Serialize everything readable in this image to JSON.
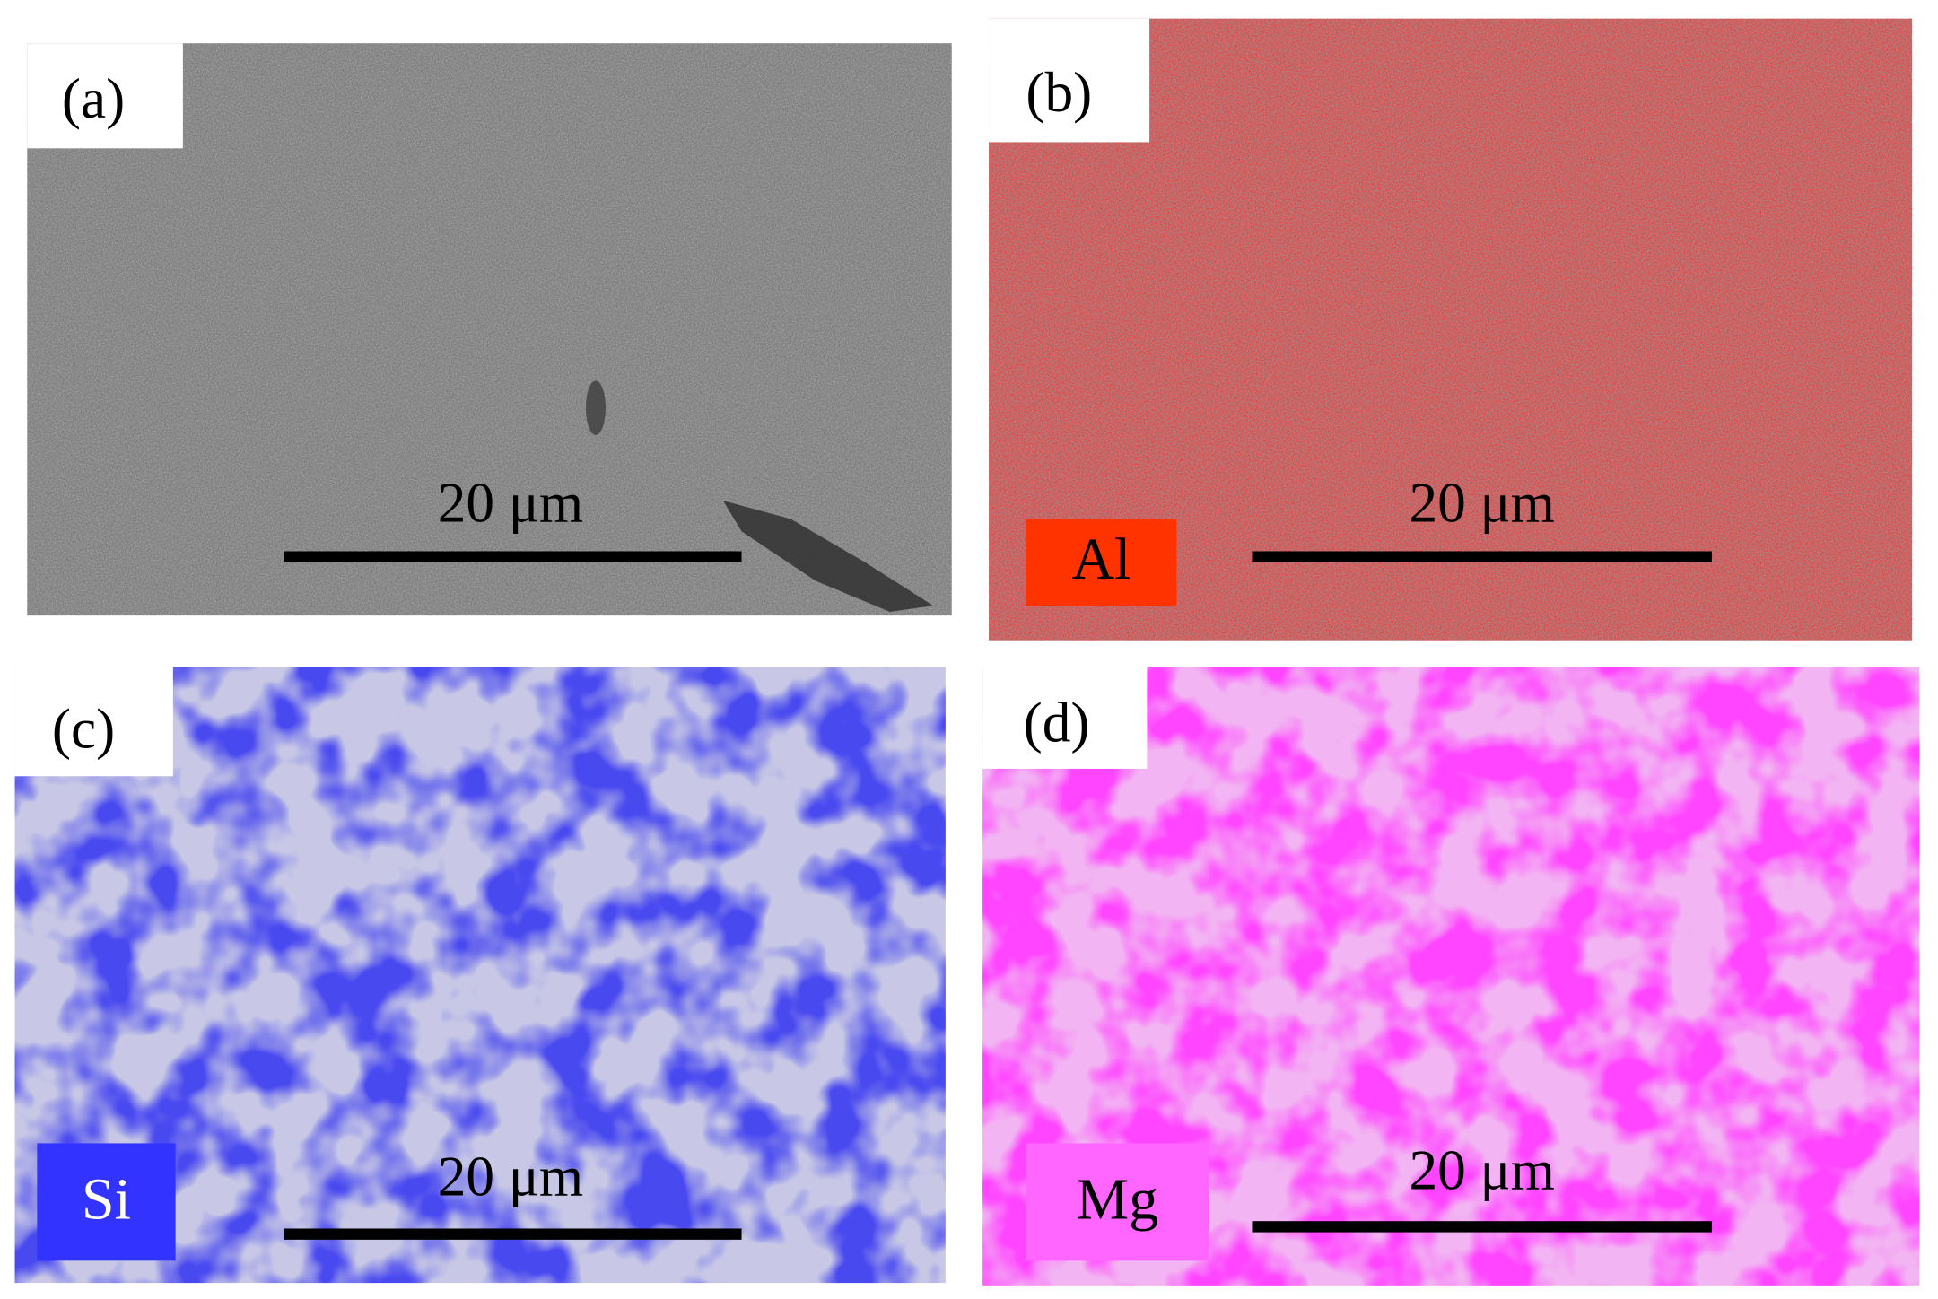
{
  "panels": [
    {
      "label": "(a)",
      "scale_bar": "20 μm"
    },
    {
      "label": "(b)",
      "element": "Al",
      "scale_bar": "20 μm"
    },
    {
      "label": "(c)",
      "element": "Si",
      "scale_bar": "20 μm"
    },
    {
      "label": "(d)",
      "element": "Mg",
      "scale_bar": "20 μm"
    }
  ]
}
